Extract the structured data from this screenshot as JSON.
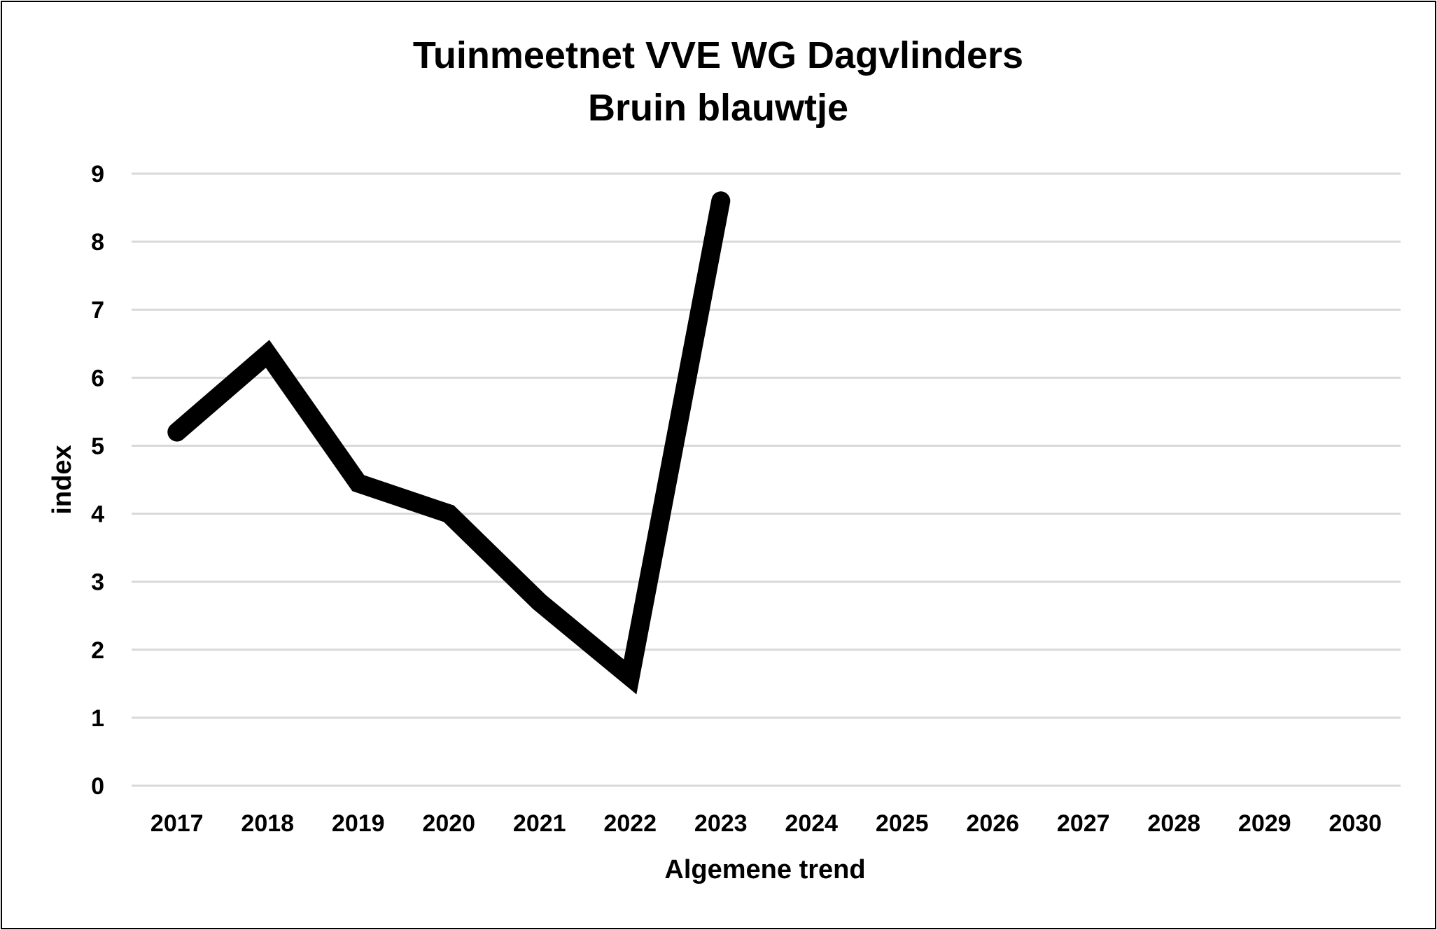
{
  "chart_data": {
    "type": "line",
    "title": [
      "Tuinmeetnet VVE WG Dagvlinders",
      "Bruin blauwtje"
    ],
    "xlabel": "Algemene trend",
    "ylabel": "index",
    "x": [
      "2017",
      "2018",
      "2019",
      "2020",
      "2021",
      "2022",
      "2023",
      "2024",
      "2025",
      "2026",
      "2027",
      "2028",
      "2029",
      "2030"
    ],
    "ylim": [
      0,
      9
    ],
    "yticks": [
      "0",
      "1",
      "2",
      "3",
      "4",
      "5",
      "6",
      "7",
      "8",
      "9"
    ],
    "grid": true,
    "legend": "none",
    "series": [
      {
        "values": [
          5.2,
          6.35,
          4.45,
          4.0,
          2.7,
          1.6,
          8.6,
          null,
          null,
          null,
          null,
          null,
          null,
          null
        ],
        "color": "#000000"
      }
    ],
    "colors": {
      "line": "#000000",
      "grid": "#d9d9d9"
    }
  }
}
